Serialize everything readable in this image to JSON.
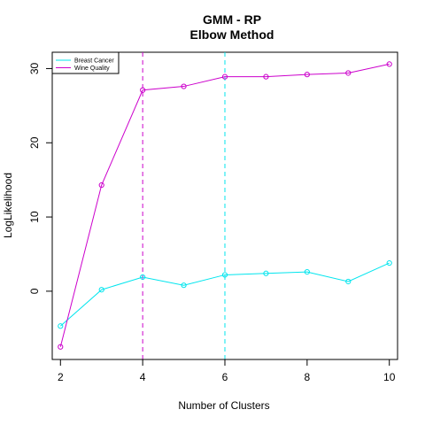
{
  "chart_data": {
    "type": "line",
    "title": "GMM - RP",
    "subtitle": "Elbow Method",
    "xlabel": "Number of Clusters",
    "ylabel": "LogLikelihood",
    "x": [
      2,
      3,
      4,
      5,
      6,
      7,
      8,
      9,
      10
    ],
    "x_ticks": [
      2,
      4,
      6,
      8,
      10
    ],
    "y_ticks": [
      0,
      10,
      20,
      30
    ],
    "xlim": [
      1.8,
      10.2
    ],
    "ylim": [
      -9.2,
      32.2
    ],
    "series": [
      {
        "name": "Breast Cancer",
        "color": "#00e5ee",
        "values": [
          -4.7,
          0.2,
          1.9,
          0.8,
          2.2,
          2.4,
          2.6,
          1.3,
          3.8
        ]
      },
      {
        "name": "Wine Quality",
        "color": "#cc00cc",
        "values": [
          -7.5,
          14.3,
          27.1,
          27.6,
          28.9,
          28.9,
          29.2,
          29.4,
          30.6
        ]
      }
    ],
    "vlines": [
      {
        "x": 4,
        "color": "#cc00cc",
        "style": "dashed"
      },
      {
        "x": 6,
        "color": "#00e5ee",
        "style": "dashed"
      }
    ],
    "legend_position": "top-left",
    "grid": false
  }
}
